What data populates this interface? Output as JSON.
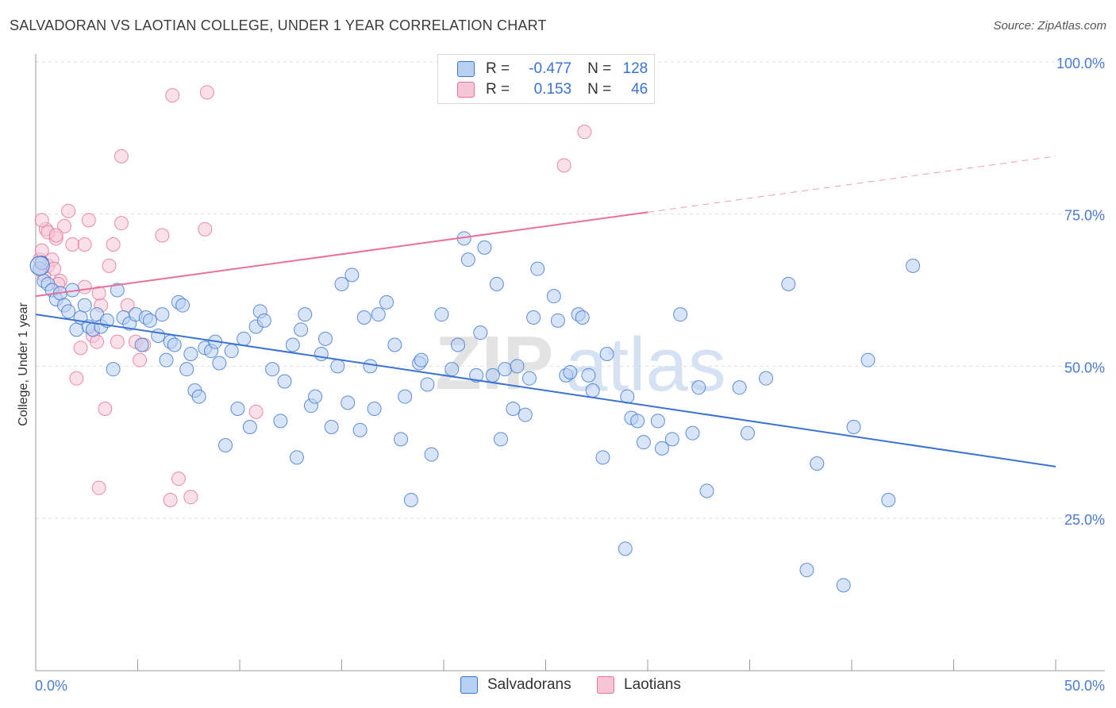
{
  "header": {
    "title": "SALVADORAN VS LAOTIAN COLLEGE, UNDER 1 YEAR CORRELATION CHART",
    "source": "Source: ZipAtlas.com"
  },
  "legend": {
    "rows": [
      {
        "r_label": "R =",
        "r_value": "-0.477",
        "n_label": "N =",
        "n_value": "128"
      },
      {
        "r_label": "R =",
        "r_value": "0.153",
        "n_label": "N =",
        "n_value": "46"
      }
    ]
  },
  "bottom_legend": {
    "series1": "Salvadorans",
    "series2": "Laotians"
  },
  "watermark": {
    "part1": "ZIP",
    "part2": "atlas"
  },
  "colors": {
    "blue": "#3b73d2",
    "blue_fill": "#b8d0f2",
    "pink": "#e8709a",
    "pink_fill": "#f6c6d6",
    "grid": "#dddddd",
    "tick_text": "#4a7bd0"
  },
  "chart_data": {
    "type": "scatter",
    "title": "SALVADORAN VS LAOTIAN COLLEGE, UNDER 1 YEAR CORRELATION CHART",
    "xlabel": "",
    "ylabel": "College, Under 1 year",
    "xlim": [
      0,
      50
    ],
    "ylim": [
      0,
      105
    ],
    "x_tick_labels": [
      "0.0%",
      "50.0%"
    ],
    "y_ticks": [
      25,
      50,
      75,
      100
    ],
    "y_tick_labels": [
      "25.0%",
      "50.0%",
      "75.0%",
      "100.0%"
    ],
    "legend_position": "top-center",
    "series": [
      {
        "name": "Salvadorans",
        "color": "#3b73d2",
        "r": -0.477,
        "n": 128,
        "trend": {
          "x0": 0,
          "y0": 58.5,
          "x1": 50,
          "y1": 33.5
        },
        "points": [
          [
            0.2,
            66
          ],
          [
            0.3,
            67
          ],
          [
            0.4,
            64
          ],
          [
            0.6,
            63.5
          ],
          [
            0.8,
            62.5
          ],
          [
            1.0,
            61
          ],
          [
            1.2,
            62
          ],
          [
            1.4,
            60
          ],
          [
            1.6,
            59
          ],
          [
            1.8,
            62.5
          ],
          [
            2.0,
            56
          ],
          [
            2.2,
            58
          ],
          [
            2.4,
            60
          ],
          [
            2.6,
            56.5
          ],
          [
            2.8,
            56
          ],
          [
            3.0,
            58.5
          ],
          [
            3.2,
            56.5
          ],
          [
            3.5,
            57.5
          ],
          [
            3.8,
            49.5
          ],
          [
            4.0,
            62.5
          ],
          [
            4.3,
            58
          ],
          [
            4.6,
            57
          ],
          [
            4.9,
            58.5
          ],
          [
            5.2,
            53.5
          ],
          [
            5.4,
            58
          ],
          [
            5.6,
            57.5
          ],
          [
            6.0,
            55
          ],
          [
            6.2,
            58.5
          ],
          [
            6.4,
            51
          ],
          [
            6.6,
            54
          ],
          [
            6.8,
            53.5
          ],
          [
            7.0,
            60.5
          ],
          [
            7.2,
            60
          ],
          [
            7.4,
            49.5
          ],
          [
            7.6,
            52
          ],
          [
            7.8,
            46
          ],
          [
            8.0,
            45
          ],
          [
            8.3,
            53
          ],
          [
            8.6,
            52.5
          ],
          [
            8.8,
            54
          ],
          [
            9.0,
            50.5
          ],
          [
            9.3,
            37
          ],
          [
            9.6,
            52.5
          ],
          [
            9.9,
            43
          ],
          [
            10.2,
            54.5
          ],
          [
            10.5,
            40
          ],
          [
            10.8,
            56.5
          ],
          [
            11.0,
            59
          ],
          [
            11.2,
            57.5
          ],
          [
            11.6,
            49.5
          ],
          [
            12.0,
            41
          ],
          [
            12.2,
            47.5
          ],
          [
            12.6,
            53.5
          ],
          [
            12.8,
            35
          ],
          [
            13.0,
            56
          ],
          [
            13.2,
            58.5
          ],
          [
            13.5,
            43.5
          ],
          [
            13.7,
            45
          ],
          [
            14.0,
            52
          ],
          [
            14.2,
            54.5
          ],
          [
            14.5,
            40
          ],
          [
            14.8,
            50
          ],
          [
            15.0,
            63.5
          ],
          [
            15.3,
            44
          ],
          [
            15.5,
            65
          ],
          [
            15.9,
            39.5
          ],
          [
            16.1,
            58
          ],
          [
            16.4,
            50
          ],
          [
            16.6,
            43
          ],
          [
            16.8,
            58.5
          ],
          [
            17.2,
            60.5
          ],
          [
            17.6,
            53.5
          ],
          [
            17.9,
            38
          ],
          [
            18.1,
            45
          ],
          [
            18.4,
            28
          ],
          [
            18.8,
            50.5
          ],
          [
            18.9,
            51
          ],
          [
            19.2,
            47
          ],
          [
            19.4,
            35.5
          ],
          [
            19.9,
            58.5
          ],
          [
            20.4,
            49.5
          ],
          [
            20.7,
            53.5
          ],
          [
            21.0,
            71
          ],
          [
            21.2,
            67.5
          ],
          [
            21.6,
            48.5
          ],
          [
            21.8,
            55.5
          ],
          [
            22.0,
            69.5
          ],
          [
            22.4,
            48.5
          ],
          [
            22.6,
            63.5
          ],
          [
            22.8,
            38
          ],
          [
            23.0,
            49.5
          ],
          [
            23.4,
            43
          ],
          [
            23.6,
            50
          ],
          [
            24.0,
            42
          ],
          [
            24.2,
            48
          ],
          [
            24.4,
            58
          ],
          [
            24.6,
            66
          ],
          [
            25.4,
            61.5
          ],
          [
            25.6,
            57.5
          ],
          [
            26.0,
            48.5
          ],
          [
            26.2,
            49
          ],
          [
            26.6,
            58.5
          ],
          [
            26.8,
            58
          ],
          [
            27.1,
            48.5
          ],
          [
            27.3,
            46
          ],
          [
            27.8,
            35
          ],
          [
            28.0,
            52
          ],
          [
            28.9,
            20
          ],
          [
            29.0,
            45
          ],
          [
            29.2,
            41.5
          ],
          [
            29.5,
            41
          ],
          [
            29.8,
            37.5
          ],
          [
            30.5,
            41
          ],
          [
            30.7,
            36.5
          ],
          [
            31.2,
            38
          ],
          [
            31.6,
            58.5
          ],
          [
            32.2,
            39
          ],
          [
            32.9,
            29.5
          ],
          [
            34.5,
            46.5
          ],
          [
            34.9,
            39
          ],
          [
            35.8,
            48
          ],
          [
            36.9,
            63.5
          ],
          [
            37.8,
            16.5
          ],
          [
            38.3,
            34
          ],
          [
            39.6,
            14
          ],
          [
            40.1,
            40
          ],
          [
            40.8,
            51
          ],
          [
            41.8,
            28
          ],
          [
            43.0,
            66.5
          ],
          [
            32.5,
            46.5
          ]
        ]
      },
      {
        "name": "Laotians",
        "color": "#e8709a",
        "r": 0.153,
        "n": 46,
        "trend": {
          "x0": 0,
          "y0": 61.5,
          "x1": 30,
          "y1": 75.3
        },
        "trend_extension": {
          "x0": 30,
          "y0": 75.3,
          "x1": 50,
          "y1": 84.5
        },
        "points": [
          [
            0.2,
            67.5
          ],
          [
            0.3,
            69
          ],
          [
            0.4,
            65
          ],
          [
            0.5,
            72.5
          ],
          [
            0.6,
            66.5
          ],
          [
            0.8,
            67.5
          ],
          [
            0.9,
            66
          ],
          [
            1.0,
            71
          ],
          [
            1.2,
            64
          ],
          [
            1.4,
            73
          ],
          [
            1.6,
            75.5
          ],
          [
            1.8,
            70
          ],
          [
            2.0,
            48
          ],
          [
            2.2,
            53
          ],
          [
            2.4,
            70
          ],
          [
            2.6,
            74
          ],
          [
            2.8,
            55
          ],
          [
            3.0,
            54
          ],
          [
            3.2,
            60
          ],
          [
            3.4,
            43
          ],
          [
            3.6,
            66.5
          ],
          [
            3.8,
            70
          ],
          [
            4.0,
            54
          ],
          [
            4.2,
            73.5
          ],
          [
            4.5,
            60
          ],
          [
            4.9,
            54
          ],
          [
            5.1,
            51
          ],
          [
            5.3,
            53.5
          ],
          [
            6.2,
            71.5
          ],
          [
            6.6,
            28
          ],
          [
            7.0,
            31.5
          ],
          [
            7.6,
            28.5
          ],
          [
            8.3,
            72.5
          ],
          [
            10.8,
            42.5
          ],
          [
            0.3,
            74
          ],
          [
            0.6,
            72
          ],
          [
            1.0,
            71.5
          ],
          [
            1.1,
            63.5
          ],
          [
            2.4,
            63
          ],
          [
            3.1,
            62
          ],
          [
            3.1,
            30
          ],
          [
            4.2,
            84.5
          ],
          [
            6.7,
            94.5
          ],
          [
            8.4,
            95
          ],
          [
            25.9,
            83
          ],
          [
            26.9,
            88.5
          ]
        ]
      }
    ]
  }
}
